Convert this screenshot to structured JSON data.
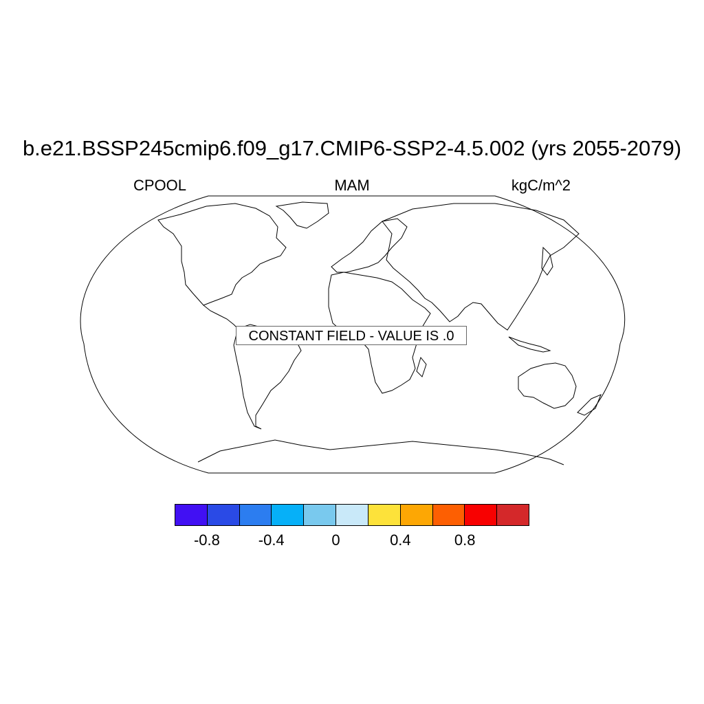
{
  "title": "b.e21.BSSP245cmip6.f09_g17.CMIP6-SSP2-4.5.002 (yrs 2055-2079)",
  "left_label": "CPOOL",
  "center_label": "MAM",
  "right_label": "kgC/m^2",
  "map": {
    "projection": "robinson",
    "field": "constant",
    "message": "CONSTANT FIELD - VALUE IS .0"
  },
  "colorbar": {
    "colors": [
      "#4110f3",
      "#2a4ae6",
      "#2c7df0",
      "#06b0f8",
      "#79c9ee",
      "#c9e9f9",
      "#fde23a",
      "#fda704",
      "#fd5f02",
      "#f80101",
      "#d4282a"
    ],
    "tick_labels": [
      {
        "label": "-0.8",
        "boundary": 1
      },
      {
        "label": "-0.4",
        "boundary": 3
      },
      {
        "label": "0",
        "boundary": 5
      },
      {
        "label": "0.4",
        "boundary": 7
      },
      {
        "label": "0.8",
        "boundary": 9
      }
    ]
  }
}
